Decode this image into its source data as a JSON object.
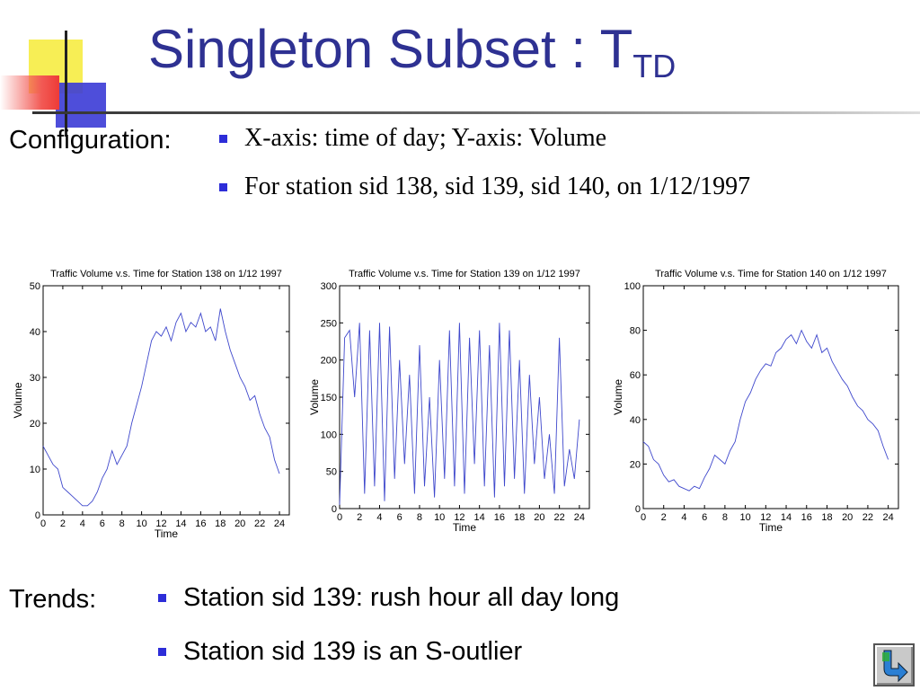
{
  "title": {
    "main": "Singleton Subset : T",
    "subscript": "TD"
  },
  "configuration": {
    "label": "Configuration:",
    "bullets": [
      "X-axis: time of day; Y-axis: Volume",
      "For station sid 138, sid 139, sid 140, on 1/12/1997"
    ]
  },
  "trends": {
    "label": "Trends:",
    "bullets": [
      "Station sid 139: rush hour all day long",
      "Station sid 139 is an S-outlier"
    ]
  },
  "colors": {
    "title": "#2e3192",
    "bullet": "#2d2dd8",
    "series": "#3f48cc",
    "deco_yellow": "#f7ee55",
    "deco_blue": "#3b3bd6",
    "deco_red": "#ee3b37"
  },
  "icons": {
    "nav_button": "return-arrow-icon"
  },
  "chart_data": [
    {
      "type": "line",
      "title": "Traffic Volume v.s. Time for Station 138 on 1/12 1997",
      "xlabel": "Time",
      "ylabel": "Volume",
      "xlim": [
        0,
        25
      ],
      "ylim": [
        0,
        50
      ],
      "xticks": [
        0,
        2,
        4,
        6,
        8,
        10,
        12,
        14,
        16,
        18,
        20,
        22,
        24
      ],
      "yticks": [
        0,
        10,
        20,
        30,
        40,
        50
      ],
      "series": [
        {
          "x": [
            0,
            0.5,
            1,
            1.5,
            2,
            2.5,
            3,
            3.5,
            4,
            4.5,
            5,
            5.5,
            6,
            6.5,
            7,
            7.5,
            8,
            8.5,
            9,
            9.5,
            10,
            10.5,
            11,
            11.5,
            12,
            12.5,
            13,
            13.5,
            14,
            14.5,
            15,
            15.5,
            16,
            16.5,
            17,
            17.5,
            18,
            18.5,
            19,
            19.5,
            20,
            20.5,
            21,
            21.5,
            22,
            22.5,
            23,
            23.5,
            24
          ],
          "y": [
            15,
            13,
            11,
            10,
            6,
            5,
            4,
            3,
            2,
            2,
            3,
            5,
            8,
            10,
            14,
            11,
            13,
            15,
            20,
            24,
            28,
            33,
            38,
            40,
            39,
            41,
            38,
            42,
            44,
            40,
            42,
            41,
            44,
            40,
            41,
            38,
            45,
            40,
            36,
            33,
            30,
            28,
            25,
            26,
            22,
            19,
            17,
            12,
            9
          ]
        }
      ]
    },
    {
      "type": "line",
      "title": "Traffic Volume v.s. Time for Station 139 on 1/12 1997",
      "xlabel": "Time",
      "ylabel": "Volume",
      "xlim": [
        0,
        25
      ],
      "ylim": [
        0,
        300
      ],
      "xticks": [
        0,
        2,
        4,
        6,
        8,
        10,
        12,
        14,
        16,
        18,
        20,
        22,
        24
      ],
      "yticks": [
        0,
        50,
        100,
        150,
        200,
        250,
        300
      ],
      "series": [
        {
          "x": [
            0,
            0.5,
            1,
            1.5,
            2,
            2.5,
            3,
            3.5,
            4,
            4.5,
            5,
            5.5,
            6,
            6.5,
            7,
            7.5,
            8,
            8.5,
            9,
            9.5,
            10,
            10.5,
            11,
            11.5,
            12,
            12.5,
            13,
            13.5,
            14,
            14.5,
            15,
            15.5,
            16,
            16.5,
            17,
            17.5,
            18,
            18.5,
            19,
            19.5,
            20,
            20.5,
            21,
            21.5,
            22,
            22.5,
            23,
            23.5,
            24
          ],
          "y": [
            5,
            230,
            240,
            150,
            250,
            20,
            240,
            30,
            250,
            10,
            245,
            40,
            200,
            60,
            180,
            20,
            220,
            30,
            150,
            15,
            200,
            40,
            240,
            30,
            250,
            20,
            230,
            60,
            240,
            30,
            220,
            15,
            250,
            30,
            240,
            40,
            200,
            20,
            180,
            60,
            150,
            40,
            100,
            20,
            230,
            30,
            80,
            40,
            120
          ]
        }
      ]
    },
    {
      "type": "line",
      "title": "Traffic Volume v.s. Time for Station 140 on 1/12 1997",
      "xlabel": "Time",
      "ylabel": "Volume",
      "xlim": [
        0,
        25
      ],
      "ylim": [
        0,
        100
      ],
      "xticks": [
        0,
        2,
        4,
        6,
        8,
        10,
        12,
        14,
        16,
        18,
        20,
        22,
        24
      ],
      "yticks": [
        0,
        20,
        40,
        60,
        80,
        100
      ],
      "series": [
        {
          "x": [
            0,
            0.5,
            1,
            1.5,
            2,
            2.5,
            3,
            3.5,
            4,
            4.5,
            5,
            5.5,
            6,
            6.5,
            7,
            7.5,
            8,
            8.5,
            9,
            9.5,
            10,
            10.5,
            11,
            11.5,
            12,
            12.5,
            13,
            13.5,
            14,
            14.5,
            15,
            15.5,
            16,
            16.5,
            17,
            17.5,
            18,
            18.5,
            19,
            19.5,
            20,
            20.5,
            21,
            21.5,
            22,
            22.5,
            23,
            23.5,
            24
          ],
          "y": [
            30,
            28,
            22,
            20,
            15,
            12,
            13,
            10,
            9,
            8,
            10,
            9,
            14,
            18,
            24,
            22,
            20,
            26,
            30,
            40,
            48,
            52,
            58,
            62,
            65,
            64,
            70,
            72,
            76,
            78,
            74,
            80,
            75,
            72,
            78,
            70,
            72,
            66,
            62,
            58,
            55,
            50,
            46,
            44,
            40,
            38,
            35,
            28,
            22
          ]
        }
      ]
    }
  ]
}
